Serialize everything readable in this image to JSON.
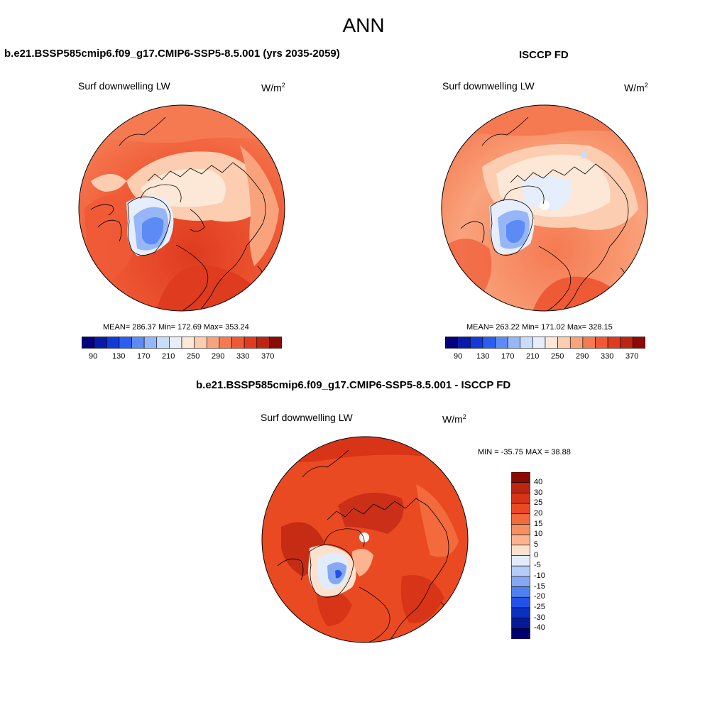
{
  "page": {
    "title": "ANN"
  },
  "panels": [
    {
      "id": "model",
      "title": "b.e21.BSSP585cmip6.f09_g17.CMIP6-SSP5-8.5.001 (yrs 2035-2059)",
      "variable": "Surf downwelling LW",
      "units_base": "W/m",
      "units_exp": "2",
      "stats": "MEAN= 286.37  Min= 172.69  Max= 353.24",
      "colorbar_ticks": [
        "90",
        "130",
        "170",
        "210",
        "250",
        "290",
        "330",
        "370"
      ]
    },
    {
      "id": "obs",
      "title": "ISCCP FD",
      "variable": "Surf downwelling LW",
      "units_base": "W/m",
      "units_exp": "2",
      "stats": "MEAN= 263.22  Min= 171.02  Max= 328.15",
      "colorbar_ticks": [
        "90",
        "130",
        "170",
        "210",
        "250",
        "290",
        "330",
        "370"
      ]
    },
    {
      "id": "diff",
      "title": "b.e21.BSSP585cmip6.f09_g17.CMIP6-SSP5-8.5.001 - ISCCP FD",
      "variable": "Surf downwelling LW",
      "units_base": "W/m",
      "units_exp": "2",
      "stats": "MIN = -35.75 MAX =  38.88",
      "colorbar_ticks": [
        "40",
        "30",
        "25",
        "20",
        "15",
        "10",
        "5",
        "0",
        "-5",
        "-10",
        "-15",
        "-20",
        "-25",
        "-30",
        "-40"
      ]
    }
  ],
  "colors": {
    "abs_scale": [
      "#00007f",
      "#0a1aa8",
      "#1339d6",
      "#2b5ef0",
      "#5c8bf5",
      "#97b6f7",
      "#c9dcfa",
      "#e6eefb",
      "#fde7d6",
      "#fccdb0",
      "#f9a37c",
      "#f57a52",
      "#ef5a36",
      "#df3b1e",
      "#bd2412",
      "#8c0a04"
    ],
    "diff_scale": [
      "#8c0a04",
      "#bd2412",
      "#d83418",
      "#ea4a22",
      "#f36a3c",
      "#f88f63",
      "#fbb48f",
      "#fde1cf",
      "#e0ecfb",
      "#b5ccf6",
      "#86a8f2",
      "#4f7ff0",
      "#2252e8",
      "#0b2fc0",
      "#061a96",
      "#000070"
    ]
  }
}
